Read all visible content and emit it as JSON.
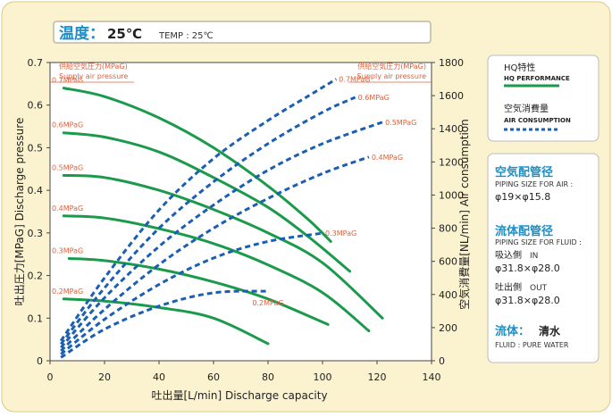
{
  "temperature": {
    "label_jp": "温度：",
    "value": "25℃",
    "label_en": "TEMP : 25℃"
  },
  "legend": {
    "hq_jp": "HQ特性",
    "hq_en": "HQ PERFORMANCE",
    "air_jp": "空気消費量",
    "air_en": "AIR CONSUMPTION",
    "hq_color": "#1a9a4a",
    "air_color": "#1a5fb4"
  },
  "specs": {
    "piping_air_jp": "空気配管径",
    "piping_air_en": "PIPING SIZE FOR AIR :",
    "piping_air_value": "φ19×φ15.8",
    "piping_fluid_jp": "流体配管径",
    "piping_fluid_en": "PIPING SIZE FOR FLUID :",
    "inlet_jp": "吸込側",
    "inlet_en": "IN",
    "inlet_value": "φ31.8×φ28.0",
    "outlet_jp": "吐出側",
    "outlet_en": "OUT",
    "outlet_value": "φ31.8×φ28.0",
    "fluid_jp": "流体：",
    "fluid_value": "清水",
    "fluid_en": "FLUID : PURE WATER",
    "heading_color": "#1a8fc8"
  },
  "chart_data": {
    "type": "line",
    "xlabel": "吐出量[L/min] Discharge capacity",
    "ylabel": "吐出圧力[MPaG]  Discharge pressure",
    "y2label": "空気消費量[NL/min]  Air consumption",
    "supply_label_left_jp": "供給空気圧力(MPaG)",
    "supply_label_left_en": "Supply air pressure",
    "supply_label_right_jp": "供給空気圧力(MPaG)",
    "supply_label_right_en": "Supply air pressure",
    "xlim": [
      0,
      140
    ],
    "ylim": [
      0,
      0.7
    ],
    "y2lim": [
      0,
      1800
    ],
    "x_ticks": [
      "0",
      "20",
      "40",
      "60",
      "80",
      "100",
      "120",
      "140"
    ],
    "y_ticks": [
      "0",
      "0.1",
      "0.2",
      "0.3",
      "0.4",
      "0.5",
      "0.6",
      "0.7"
    ],
    "y2_ticks": [
      "0",
      "200",
      "400",
      "600",
      "800",
      "1000",
      "1200",
      "1400",
      "1600",
      "1800"
    ],
    "series": [
      {
        "name": "0.7MPaG",
        "kind": "pressure",
        "x": [
          5,
          20,
          40,
          60,
          80,
          95,
          103
        ],
        "y": [
          0.64,
          0.62,
          0.57,
          0.5,
          0.41,
          0.33,
          0.28
        ]
      },
      {
        "name": "0.6MPaG",
        "kind": "pressure",
        "x": [
          5,
          20,
          40,
          60,
          80,
          95,
          110
        ],
        "y": [
          0.535,
          0.525,
          0.49,
          0.43,
          0.36,
          0.29,
          0.21
        ]
      },
      {
        "name": "0.5MPaG",
        "kind": "pressure",
        "x": [
          5,
          20,
          40,
          60,
          80,
          100,
          122
        ],
        "y": [
          0.435,
          0.43,
          0.4,
          0.355,
          0.3,
          0.23,
          0.1
        ]
      },
      {
        "name": "0.4MPaG",
        "kind": "pressure",
        "x": [
          5,
          20,
          40,
          60,
          80,
          100,
          117
        ],
        "y": [
          0.34,
          0.335,
          0.31,
          0.275,
          0.225,
          0.16,
          0.07
        ]
      },
      {
        "name": "0.3MPaG",
        "kind": "pressure",
        "x": [
          7,
          20,
          40,
          60,
          80,
          102
        ],
        "y": [
          0.24,
          0.235,
          0.215,
          0.185,
          0.145,
          0.085
        ]
      },
      {
        "name": "0.2MPaG",
        "kind": "pressure",
        "x": [
          5,
          20,
          40,
          60,
          80
        ],
        "y": [
          0.145,
          0.14,
          0.125,
          0.1,
          0.04
        ]
      },
      {
        "name": "0.7MPaG",
        "kind": "air",
        "x": [
          4,
          20,
          40,
          60,
          80,
          95,
          105
        ],
        "y": [
          120,
          500,
          910,
          1220,
          1450,
          1600,
          1700
        ]
      },
      {
        "name": "0.6MPaG",
        "kind": "air",
        "x": [
          4,
          20,
          40,
          60,
          80,
          100,
          112
        ],
        "y": [
          100,
          440,
          800,
          1080,
          1310,
          1500,
          1590
        ]
      },
      {
        "name": "0.5MPaG",
        "kind": "air",
        "x": [
          4,
          20,
          40,
          60,
          80,
          100,
          122
        ],
        "y": [
          80,
          380,
          690,
          940,
          1150,
          1310,
          1440
        ]
      },
      {
        "name": "0.4MPaG",
        "kind": "air",
        "x": [
          4,
          20,
          40,
          60,
          80,
          100,
          117
        ],
        "y": [
          60,
          310,
          580,
          800,
          980,
          1130,
          1230
        ]
      },
      {
        "name": "0.3MPaG",
        "kind": "air",
        "x": [
          4,
          20,
          40,
          60,
          80,
          100
        ],
        "y": [
          40,
          250,
          460,
          620,
          720,
          770
        ]
      },
      {
        "name": "0.2MPaG",
        "kind": "air",
        "x": [
          4,
          20,
          40,
          60,
          80
        ],
        "y": [
          20,
          190,
          330,
          410,
          420
        ]
      }
    ]
  }
}
